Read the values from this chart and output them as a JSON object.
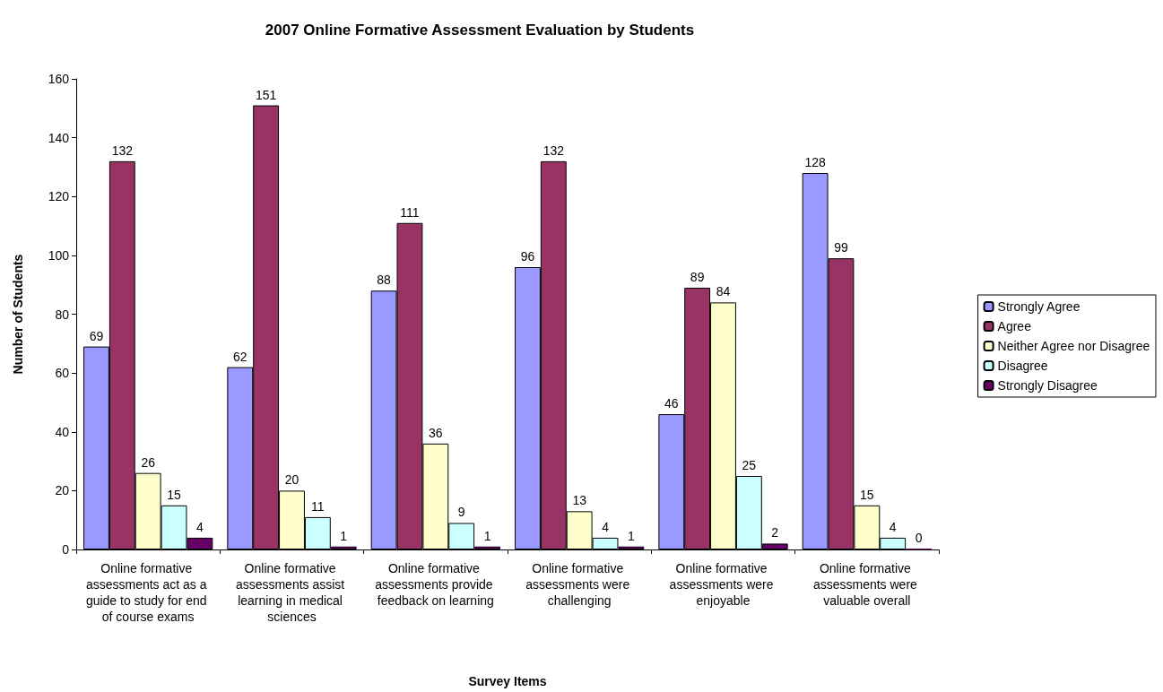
{
  "chart_data": {
    "type": "bar",
    "title": "2007 Online Formative Assessment Evaluation by Students",
    "xlabel": "Survey Items",
    "ylabel": "Number of Students",
    "categories": [
      "Online formative assessments act as a guide to study for end of course exams",
      "Online formative assessments assist learning in medical sciences",
      "Online formative assessments provide feedback on learning",
      "Online formative assessments were challenging",
      "Online formative assessments were enjoyable",
      "Online formative assessments were valuable overall"
    ],
    "series": [
      {
        "name": "Strongly Agree",
        "color": "#9999ff",
        "values": [
          69,
          62,
          88,
          96,
          46,
          128
        ]
      },
      {
        "name": "Agree",
        "color": "#993366",
        "values": [
          132,
          151,
          111,
          132,
          89,
          99
        ]
      },
      {
        "name": "Neither Agree nor Disagree",
        "color": "#ffffcc",
        "values": [
          26,
          20,
          36,
          13,
          84,
          15
        ]
      },
      {
        "name": "Disagree",
        "color": "#ccffff",
        "values": [
          15,
          11,
          9,
          4,
          25,
          4
        ]
      },
      {
        "name": "Strongly Disagree",
        "color": "#660066",
        "values": [
          4,
          1,
          1,
          1,
          2,
          0
        ]
      }
    ],
    "ylim": [
      0,
      160
    ],
    "yticks": [
      0,
      20,
      40,
      60,
      80,
      100,
      120,
      140,
      160
    ],
    "data_labels": true,
    "grid": false,
    "legend": "right"
  }
}
